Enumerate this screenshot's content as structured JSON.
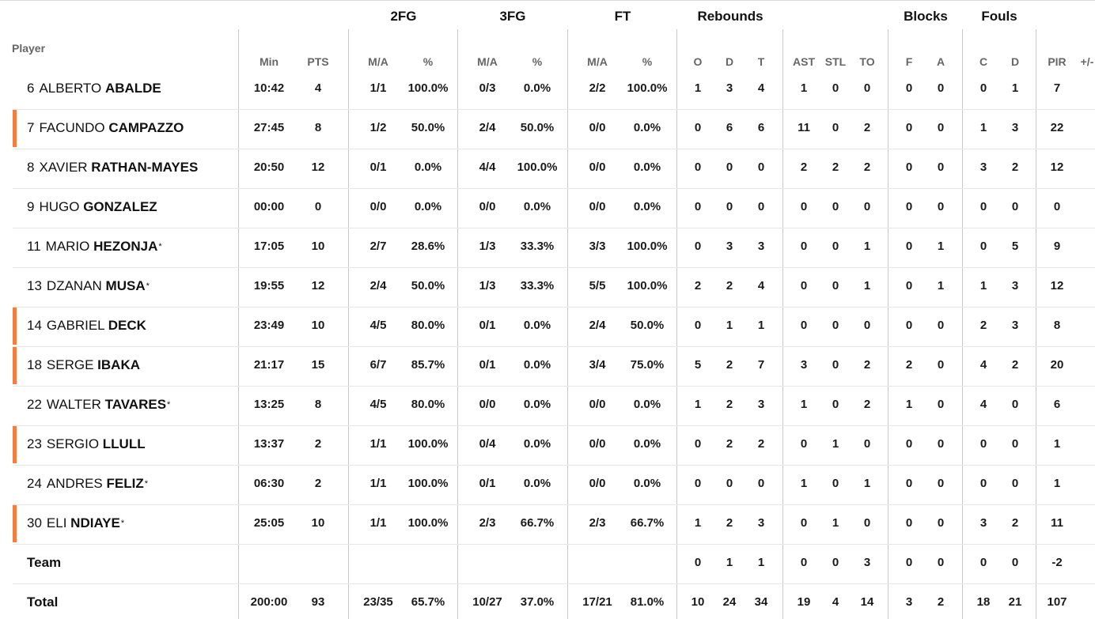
{
  "header": {
    "player": "Player",
    "groups": [
      "2FG",
      "3FG",
      "FT",
      "Rebounds",
      "Blocks",
      "Fouls"
    ],
    "subheaders": [
      "Min",
      "PTS",
      "M/A",
      "%",
      "M/A",
      "%",
      "M/A",
      "%",
      "O",
      "D",
      "T",
      "AST",
      "STL",
      "TO",
      "F",
      "A",
      "C",
      "D",
      "PIR",
      "+/-"
    ]
  },
  "players": [
    {
      "number": "6",
      "first": "ALBERTO",
      "last": "ABALDE",
      "starter": false,
      "highlight": false,
      "min": "10:42",
      "pts": "4",
      "fg2": "1/1",
      "fg2p": "100.0%",
      "fg3": "0/3",
      "fg3p": "0.0%",
      "ft": "2/2",
      "ftp": "100.0%",
      "o": "1",
      "d": "3",
      "t": "4",
      "ast": "1",
      "stl": "0",
      "to": "0",
      "bf": "0",
      "ba": "0",
      "fc": "0",
      "fd": "1",
      "pir": "7"
    },
    {
      "number": "7",
      "first": "FACUNDO",
      "last": "CAMPAZZO",
      "starter": false,
      "highlight": true,
      "min": "27:45",
      "pts": "8",
      "fg2": "1/2",
      "fg2p": "50.0%",
      "fg3": "2/4",
      "fg3p": "50.0%",
      "ft": "0/0",
      "ftp": "0.0%",
      "o": "0",
      "d": "6",
      "t": "6",
      "ast": "11",
      "stl": "0",
      "to": "2",
      "bf": "0",
      "ba": "0",
      "fc": "1",
      "fd": "3",
      "pir": "22"
    },
    {
      "number": "8",
      "first": "XAVIER",
      "last": "RATHAN-MAYES",
      "starter": false,
      "highlight": false,
      "min": "20:50",
      "pts": "12",
      "fg2": "0/1",
      "fg2p": "0.0%",
      "fg3": "4/4",
      "fg3p": "100.0%",
      "ft": "0/0",
      "ftp": "0.0%",
      "o": "0",
      "d": "0",
      "t": "0",
      "ast": "2",
      "stl": "2",
      "to": "2",
      "bf": "0",
      "ba": "0",
      "fc": "3",
      "fd": "2",
      "pir": "12"
    },
    {
      "number": "9",
      "first": "HUGO",
      "last": "GONZALEZ",
      "starter": false,
      "highlight": false,
      "min": "00:00",
      "pts": "0",
      "fg2": "0/0",
      "fg2p": "0.0%",
      "fg3": "0/0",
      "fg3p": "0.0%",
      "ft": "0/0",
      "ftp": "0.0%",
      "o": "0",
      "d": "0",
      "t": "0",
      "ast": "0",
      "stl": "0",
      "to": "0",
      "bf": "0",
      "ba": "0",
      "fc": "0",
      "fd": "0",
      "pir": "0"
    },
    {
      "number": "11",
      "first": "MARIO",
      "last": "HEZONJA",
      "starter": true,
      "highlight": false,
      "min": "17:05",
      "pts": "10",
      "fg2": "2/7",
      "fg2p": "28.6%",
      "fg3": "1/3",
      "fg3p": "33.3%",
      "ft": "3/3",
      "ftp": "100.0%",
      "o": "0",
      "d": "3",
      "t": "3",
      "ast": "0",
      "stl": "0",
      "to": "1",
      "bf": "0",
      "ba": "1",
      "fc": "0",
      "fd": "5",
      "pir": "9"
    },
    {
      "number": "13",
      "first": "DZANAN",
      "last": "MUSA",
      "starter": true,
      "highlight": false,
      "min": "19:55",
      "pts": "12",
      "fg2": "2/4",
      "fg2p": "50.0%",
      "fg3": "1/3",
      "fg3p": "33.3%",
      "ft": "5/5",
      "ftp": "100.0%",
      "o": "2",
      "d": "2",
      "t": "4",
      "ast": "0",
      "stl": "0",
      "to": "1",
      "bf": "0",
      "ba": "1",
      "fc": "1",
      "fd": "3",
      "pir": "12"
    },
    {
      "number": "14",
      "first": "GABRIEL",
      "last": "DECK",
      "starter": false,
      "highlight": true,
      "min": "23:49",
      "pts": "10",
      "fg2": "4/5",
      "fg2p": "80.0%",
      "fg3": "0/1",
      "fg3p": "0.0%",
      "ft": "2/4",
      "ftp": "50.0%",
      "o": "0",
      "d": "1",
      "t": "1",
      "ast": "0",
      "stl": "0",
      "to": "0",
      "bf": "0",
      "ba": "0",
      "fc": "2",
      "fd": "3",
      "pir": "8"
    },
    {
      "number": "18",
      "first": "SERGE",
      "last": "IBAKA",
      "starter": false,
      "highlight": true,
      "min": "21:17",
      "pts": "15",
      "fg2": "6/7",
      "fg2p": "85.7%",
      "fg3": "0/1",
      "fg3p": "0.0%",
      "ft": "3/4",
      "ftp": "75.0%",
      "o": "5",
      "d": "2",
      "t": "7",
      "ast": "3",
      "stl": "0",
      "to": "2",
      "bf": "2",
      "ba": "0",
      "fc": "4",
      "fd": "2",
      "pir": "20"
    },
    {
      "number": "22",
      "first": "WALTER",
      "last": "TAVARES",
      "starter": true,
      "highlight": false,
      "min": "13:25",
      "pts": "8",
      "fg2": "4/5",
      "fg2p": "80.0%",
      "fg3": "0/0",
      "fg3p": "0.0%",
      "ft": "0/0",
      "ftp": "0.0%",
      "o": "1",
      "d": "2",
      "t": "3",
      "ast": "1",
      "stl": "0",
      "to": "2",
      "bf": "1",
      "ba": "0",
      "fc": "4",
      "fd": "0",
      "pir": "6"
    },
    {
      "number": "23",
      "first": "SERGIO",
      "last": "LLULL",
      "starter": false,
      "highlight": true,
      "min": "13:37",
      "pts": "2",
      "fg2": "1/1",
      "fg2p": "100.0%",
      "fg3": "0/4",
      "fg3p": "0.0%",
      "ft": "0/0",
      "ftp": "0.0%",
      "o": "0",
      "d": "2",
      "t": "2",
      "ast": "0",
      "stl": "1",
      "to": "0",
      "bf": "0",
      "ba": "0",
      "fc": "0",
      "fd": "0",
      "pir": "1"
    },
    {
      "number": "24",
      "first": "ANDRES",
      "last": "FELIZ",
      "starter": true,
      "highlight": false,
      "min": "06:30",
      "pts": "2",
      "fg2": "1/1",
      "fg2p": "100.0%",
      "fg3": "0/1",
      "fg3p": "0.0%",
      "ft": "0/0",
      "ftp": "0.0%",
      "o": "0",
      "d": "0",
      "t": "0",
      "ast": "1",
      "stl": "0",
      "to": "1",
      "bf": "0",
      "ba": "0",
      "fc": "0",
      "fd": "0",
      "pir": "1"
    },
    {
      "number": "30",
      "first": "ELI",
      "last": "NDIAYE",
      "starter": true,
      "highlight": true,
      "min": "25:05",
      "pts": "10",
      "fg2": "1/1",
      "fg2p": "100.0%",
      "fg3": "2/3",
      "fg3p": "66.7%",
      "ft": "2/3",
      "ftp": "66.7%",
      "o": "1",
      "d": "2",
      "t": "3",
      "ast": "0",
      "stl": "1",
      "to": "0",
      "bf": "0",
      "ba": "0",
      "fc": "3",
      "fd": "2",
      "pir": "11"
    }
  ],
  "team": {
    "label": "Team",
    "o": "0",
    "d": "1",
    "t": "1",
    "ast": "0",
    "stl": "0",
    "to": "3",
    "bf": "0",
    "ba": "0",
    "fc": "0",
    "fd": "0",
    "pir": "-2"
  },
  "total": {
    "label": "Total",
    "min": "200:00",
    "pts": "93",
    "fg2": "23/35",
    "fg2p": "65.7%",
    "fg3": "10/27",
    "fg3p": "37.0%",
    "ft": "17/21",
    "ftp": "81.0%",
    "o": "10",
    "d": "24",
    "t": "34",
    "ast": "19",
    "stl": "4",
    "to": "14",
    "bf": "3",
    "ba": "2",
    "fc": "18",
    "fd": "21",
    "pir": "107"
  },
  "colors": {
    "highlight": "#f37e3f",
    "gridline": "#c9c9c9",
    "rowline": "#e6e6e6",
    "header_text": "#666666"
  }
}
